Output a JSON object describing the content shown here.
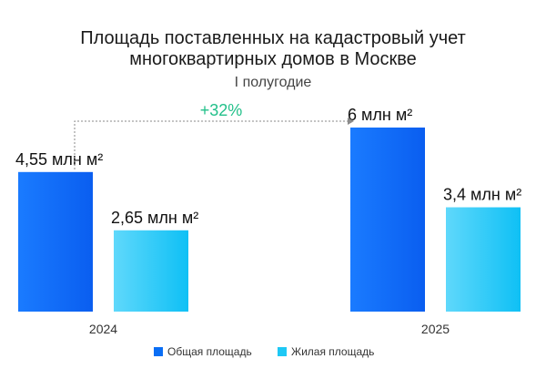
{
  "chart_data": {
    "type": "bar",
    "title_line1": "Площадь поставленных на кадастровый учет",
    "title_line2": "многоквартирных домов в Москве",
    "subtitle": "I полугодие",
    "categories": [
      "2024",
      "2025"
    ],
    "series": [
      {
        "name": "Общая площадь",
        "values": [
          4.55,
          6.0
        ],
        "labels": [
          "4,55 млн м²",
          "6 млн м²"
        ],
        "color": "#0a6ef5"
      },
      {
        "name": "Жилая площадь",
        "values": [
          2.65,
          3.4
        ],
        "labels": [
          "2,65 млн м²",
          "3,4 млн м²"
        ],
        "color": "#1ec8f5"
      }
    ],
    "annotation": {
      "text": "+32%",
      "color": "#22c08a"
    },
    "ylim": [
      0,
      6.0
    ],
    "grid": false,
    "legend_position": "bottom"
  }
}
